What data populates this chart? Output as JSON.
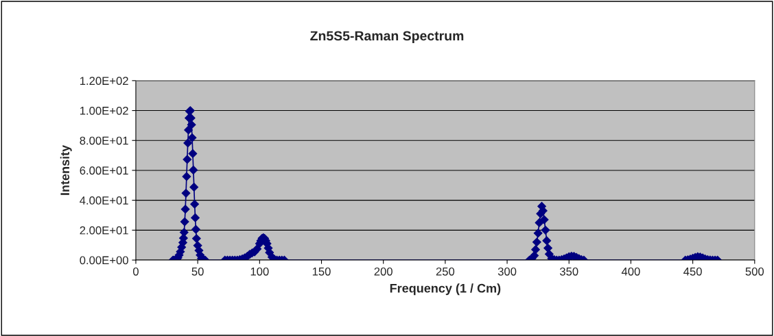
{
  "chart_data": {
    "type": "line",
    "title": "Zn5S5-Raman Spectrum",
    "xlabel": "Frequency (1 / Cm)",
    "ylabel": "Intensity",
    "series": [
      {
        "color": "#000080",
        "x": [
          30,
          31,
          32,
          33,
          34,
          35,
          36,
          37,
          38,
          38.5,
          39,
          39.5,
          40,
          40.5,
          41,
          41.5,
          42,
          42.5,
          43,
          43.5,
          44,
          44.5,
          45,
          45.5,
          46,
          46.5,
          47,
          47.5,
          48,
          48.5,
          49,
          50,
          51,
          52,
          53,
          54,
          55,
          56,
          72,
          74,
          76,
          78,
          80,
          82,
          84,
          86,
          88,
          90,
          92,
          94,
          96,
          98,
          100,
          101,
          102,
          103,
          104,
          105,
          106,
          107,
          108,
          110,
          112,
          114,
          116,
          118,
          120,
          318,
          320,
          322,
          323,
          324,
          325,
          326,
          327,
          328,
          329,
          330,
          331,
          332,
          333,
          334,
          336,
          338,
          340,
          342,
          344,
          346,
          348,
          350,
          352,
          354,
          356,
          358,
          360,
          362,
          444,
          446,
          448,
          450,
          452,
          454,
          456,
          458,
          460,
          462,
          464,
          466,
          468,
          470
        ],
        "values": [
          0,
          0,
          0,
          0.5,
          1.5,
          3.3,
          5.6,
          8.6,
          11.7,
          14.7,
          18.5,
          25.6,
          34,
          44.7,
          55.9,
          67.3,
          78.3,
          87,
          95,
          99.5,
          100,
          95,
          90.5,
          81.8,
          71.2,
          60.2,
          48.8,
          37.4,
          28.3,
          20.5,
          14.4,
          9.7,
          6.4,
          3.3,
          1,
          0.3,
          0,
          0,
          0,
          0,
          0,
          0,
          0,
          0,
          0.3,
          0.8,
          1.5,
          2.5,
          3.8,
          4.8,
          5.5,
          7.5,
          11,
          13,
          14.5,
          15,
          14.5,
          13,
          11,
          8,
          5,
          2,
          0.5,
          0,
          0,
          0,
          0,
          0,
          1,
          3,
          7,
          12,
          18,
          25,
          31,
          36,
          33,
          27,
          20,
          13,
          8,
          4,
          1,
          0.3,
          0,
          0,
          0.3,
          0.8,
          1.5,
          2.2,
          2.6,
          2.5,
          1.8,
          1,
          0.3,
          0,
          0,
          0.2,
          0.6,
          1.2,
          1.8,
          2.2,
          2,
          1.5,
          0.8,
          0.3,
          0.1,
          0,
          0,
          0
        ]
      }
    ],
    "xlim": [
      0,
      500
    ],
    "xticks": [
      0,
      50,
      100,
      150,
      200,
      250,
      300,
      350,
      400,
      450,
      500
    ],
    "ylim": [
      0,
      120
    ],
    "yticks": [
      {
        "value": 0,
        "label": "0.00E+00"
      },
      {
        "value": 20,
        "label": "2.00E+01"
      },
      {
        "value": 40,
        "label": "4.00E+01"
      },
      {
        "value": 60,
        "label": "6.00E+01"
      },
      {
        "value": 80,
        "label": "8.00E+01"
      },
      {
        "value": 100,
        "label": "1.00E+02"
      },
      {
        "value": 120,
        "label": "1.20E+02"
      }
    ],
    "grid": "y",
    "marker": "diamond",
    "line_style": "solid",
    "legend": false
  }
}
